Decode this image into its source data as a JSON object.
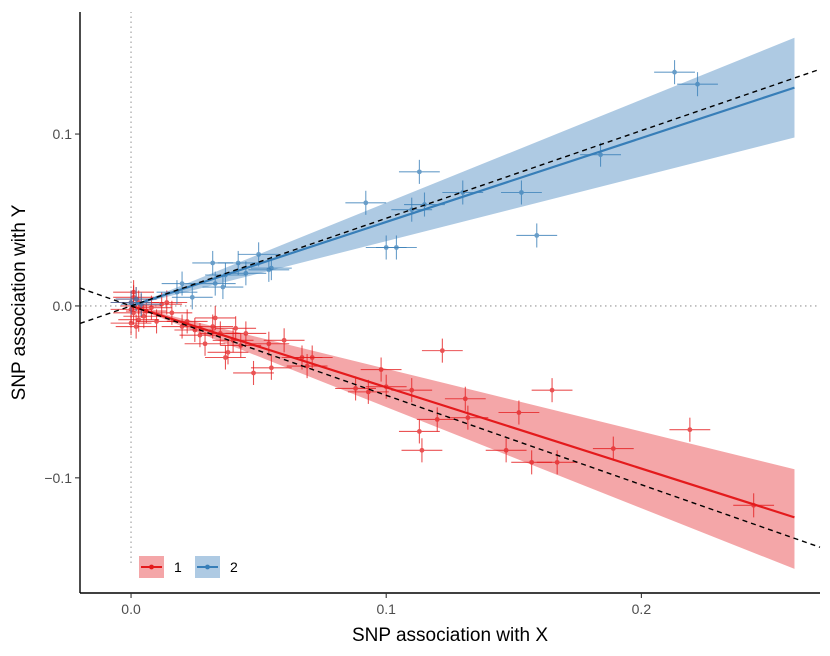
{
  "chart_data": {
    "type": "scatter",
    "title": "",
    "xlabel": "SNP association with X",
    "ylabel": "SNP association with Y",
    "xlim": [
      -0.02,
      0.27
    ],
    "ylim": [
      -0.167,
      0.171
    ],
    "xticks": [
      0.0,
      0.1,
      0.2
    ],
    "xtick_labels": [
      "0.0",
      "0.1",
      "0.2"
    ],
    "yticks": [
      -0.1,
      0.0,
      0.1
    ],
    "ytick_labels": [
      "−0.1",
      "0.0",
      "0.1"
    ],
    "reference_lines": {
      "x": 0,
      "y": 0,
      "style": "dotted",
      "color": "#aaaaaa"
    },
    "legend": {
      "position": "bottom-left",
      "entries": [
        "1",
        "2"
      ]
    },
    "series": [
      {
        "name": "1",
        "color": "#e41a1c",
        "band_color": "#f4a6a8",
        "fit": {
          "x": [
            0.0,
            0.26
          ],
          "y": [
            0.0,
            -0.123
          ]
        },
        "band": {
          "x": [
            0.0,
            0.26
          ],
          "upper": [
            0.0,
            -0.095
          ],
          "lower": [
            0.0,
            -0.153
          ]
        },
        "points": [
          {
            "x": 0.0,
            "y": 0.002
          },
          {
            "x": 0.001,
            "y": -0.004
          },
          {
            "x": 0.002,
            "y": 0.004
          },
          {
            "x": 0.003,
            "y": -0.008
          },
          {
            "x": 0.0,
            "y": -0.01
          },
          {
            "x": 0.001,
            "y": 0.008
          },
          {
            "x": 0.004,
            "y": 0.0
          },
          {
            "x": 0.005,
            "y": -0.006
          },
          {
            "x": 0.0,
            "y": -0.002
          },
          {
            "x": 0.002,
            "y": -0.012
          },
          {
            "x": 0.003,
            "y": 0.002
          },
          {
            "x": 0.006,
            "y": -0.003
          },
          {
            "x": 0.001,
            "y": 0.005
          },
          {
            "x": 0.008,
            "y": -0.001
          },
          {
            "x": 0.01,
            "y": -0.009
          },
          {
            "x": 0.012,
            "y": 0.001
          },
          {
            "x": 0.014,
            "y": 0.002
          },
          {
            "x": 0.016,
            "y": -0.004
          },
          {
            "x": 0.02,
            "y": -0.012
          },
          {
            "x": 0.022,
            "y": -0.009
          },
          {
            "x": 0.025,
            "y": -0.014
          },
          {
            "x": 0.027,
            "y": -0.017
          },
          {
            "x": 0.029,
            "y": -0.022
          },
          {
            "x": 0.032,
            "y": -0.012
          },
          {
            "x": 0.033,
            "y": -0.007
          },
          {
            "x": 0.035,
            "y": -0.016
          },
          {
            "x": 0.037,
            "y": -0.03
          },
          {
            "x": 0.038,
            "y": -0.027
          },
          {
            "x": 0.04,
            "y": -0.02
          },
          {
            "x": 0.041,
            "y": -0.013
          },
          {
            "x": 0.043,
            "y": -0.023
          },
          {
            "x": 0.045,
            "y": -0.016
          },
          {
            "x": 0.048,
            "y": -0.039
          },
          {
            "x": 0.054,
            "y": -0.022
          },
          {
            "x": 0.055,
            "y": -0.036
          },
          {
            "x": 0.06,
            "y": -0.02
          },
          {
            "x": 0.067,
            "y": -0.03
          },
          {
            "x": 0.069,
            "y": -0.035
          },
          {
            "x": 0.071,
            "y": -0.03
          },
          {
            "x": 0.088,
            "y": -0.048
          },
          {
            "x": 0.093,
            "y": -0.05
          },
          {
            "x": 0.098,
            "y": -0.037
          },
          {
            "x": 0.1,
            "y": -0.047
          },
          {
            "x": 0.11,
            "y": -0.049
          },
          {
            "x": 0.113,
            "y": -0.073
          },
          {
            "x": 0.114,
            "y": -0.084
          },
          {
            "x": 0.12,
            "y": -0.066
          },
          {
            "x": 0.122,
            "y": -0.026
          },
          {
            "x": 0.131,
            "y": -0.054
          },
          {
            "x": 0.132,
            "y": -0.065
          },
          {
            "x": 0.147,
            "y": -0.084
          },
          {
            "x": 0.152,
            "y": -0.062
          },
          {
            "x": 0.157,
            "y": -0.091
          },
          {
            "x": 0.165,
            "y": -0.049
          },
          {
            "x": 0.167,
            "y": -0.091
          },
          {
            "x": 0.189,
            "y": -0.083
          },
          {
            "x": 0.219,
            "y": -0.072
          },
          {
            "x": 0.244,
            "y": -0.116
          }
        ]
      },
      {
        "name": "2",
        "color": "#377eb8",
        "band_color": "#aecae3",
        "fit": {
          "x": [
            0.0,
            0.26
          ],
          "y": [
            0.0,
            0.127
          ]
        },
        "band": {
          "x": [
            0.0,
            0.26
          ],
          "upper": [
            0.0,
            0.156
          ],
          "lower": [
            0.0,
            0.098
          ]
        },
        "points": [
          {
            "x": 0.0,
            "y": 0.002
          },
          {
            "x": 0.002,
            "y": 0.004
          },
          {
            "x": 0.004,
            "y": 0.001
          },
          {
            "x": 0.018,
            "y": 0.008
          },
          {
            "x": 0.02,
            "y": 0.013
          },
          {
            "x": 0.024,
            "y": 0.005
          },
          {
            "x": 0.032,
            "y": 0.025
          },
          {
            "x": 0.033,
            "y": 0.013
          },
          {
            "x": 0.036,
            "y": 0.011
          },
          {
            "x": 0.037,
            "y": 0.018
          },
          {
            "x": 0.042,
            "y": 0.025
          },
          {
            "x": 0.045,
            "y": 0.019
          },
          {
            "x": 0.05,
            "y": 0.03
          },
          {
            "x": 0.054,
            "y": 0.021
          },
          {
            "x": 0.055,
            "y": 0.022
          },
          {
            "x": 0.092,
            "y": 0.06
          },
          {
            "x": 0.1,
            "y": 0.034
          },
          {
            "x": 0.104,
            "y": 0.034
          },
          {
            "x": 0.11,
            "y": 0.056
          },
          {
            "x": 0.113,
            "y": 0.078
          },
          {
            "x": 0.115,
            "y": 0.059
          },
          {
            "x": 0.13,
            "y": 0.066
          },
          {
            "x": 0.153,
            "y": 0.066
          },
          {
            "x": 0.159,
            "y": 0.041
          },
          {
            "x": 0.184,
            "y": 0.088
          },
          {
            "x": 0.213,
            "y": 0.136
          },
          {
            "x": 0.222,
            "y": 0.129
          }
        ]
      }
    ],
    "dashed_lines": [
      {
        "x": [
          -0.02,
          0.27
        ],
        "y": [
          0.0104,
          -0.1404
        ],
        "color": "#000000"
      },
      {
        "x": [
          -0.02,
          0.27
        ],
        "y": [
          -0.0102,
          0.1377
        ],
        "color": "#000000"
      }
    ],
    "error_bar_halfwidth": {
      "x": 0.008,
      "y": 0.007
    }
  }
}
